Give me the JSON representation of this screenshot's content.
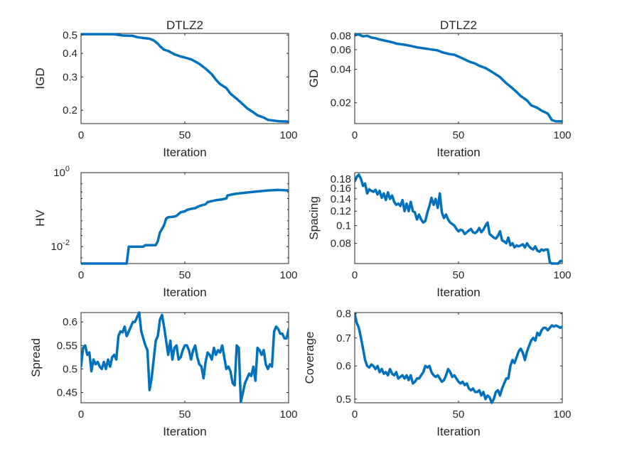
{
  "chart_data": [
    {
      "type": "line",
      "title": "DTLZ2",
      "xlabel": "Iteration",
      "ylabel": "IGD",
      "xlim": [
        0,
        100
      ],
      "ylim": [
        0.17,
        0.51
      ],
      "yscale": "log",
      "xticks": [
        "0",
        "50",
        "100"
      ],
      "yticks": [
        {
          "value": 0.2,
          "label": "0.2"
        },
        {
          "value": 0.3,
          "label": "0.3"
        },
        {
          "value": 0.4,
          "label": "0.4"
        },
        {
          "value": 0.5,
          "label": "0.5"
        }
      ],
      "color": "#0072BD",
      "series": [
        {
          "x": [
            0,
            5,
            10,
            15,
            17,
            20,
            25,
            27,
            30,
            33,
            35,
            37,
            38,
            40,
            42,
            45,
            48,
            50,
            53,
            55,
            57,
            60,
            63,
            65,
            67,
            70,
            72,
            75,
            77,
            80,
            83,
            85,
            88,
            90,
            95,
            100
          ],
          "y": [
            0.505,
            0.505,
            0.505,
            0.505,
            0.503,
            0.497,
            0.495,
            0.487,
            0.482,
            0.478,
            0.468,
            0.45,
            0.437,
            0.418,
            0.412,
            0.395,
            0.385,
            0.38,
            0.372,
            0.362,
            0.352,
            0.332,
            0.31,
            0.29,
            0.275,
            0.262,
            0.245,
            0.23,
            0.22,
            0.205,
            0.195,
            0.188,
            0.183,
            0.178,
            0.175,
            0.174
          ]
        }
      ]
    },
    {
      "type": "line",
      "title": "DTLZ2",
      "xlabel": "Iteration",
      "ylabel": "GD",
      "xlim": [
        0,
        100
      ],
      "ylim": [
        0.013,
        0.084
      ],
      "yscale": "log",
      "xticks": [
        "0",
        "50",
        "100"
      ],
      "yticks": [
        {
          "value": 0.02,
          "label": "0.02"
        },
        {
          "value": 0.04,
          "label": "0.04"
        },
        {
          "value": 0.06,
          "label": "0.06"
        },
        {
          "value": 0.08,
          "label": "0.08"
        }
      ],
      "color": "#0072BD",
      "series": [
        {
          "x": [
            0,
            2,
            4,
            6,
            8,
            10,
            12,
            15,
            18,
            20,
            25,
            30,
            35,
            40,
            42,
            45,
            48,
            50,
            53,
            55,
            58,
            60,
            63,
            65,
            68,
            70,
            73,
            75,
            78,
            80,
            83,
            85,
            88,
            90,
            93,
            95,
            97,
            100
          ],
          "y": [
            0.082,
            0.082,
            0.079,
            0.08,
            0.077,
            0.076,
            0.074,
            0.072,
            0.07,
            0.068,
            0.066,
            0.063,
            0.061,
            0.059,
            0.057,
            0.055,
            0.054,
            0.052,
            0.049,
            0.047,
            0.045,
            0.043,
            0.041,
            0.039,
            0.036,
            0.034,
            0.03,
            0.028,
            0.025,
            0.023,
            0.021,
            0.019,
            0.018,
            0.017,
            0.016,
            0.014,
            0.0136,
            0.0136
          ]
        }
      ]
    },
    {
      "type": "line",
      "title": "",
      "xlabel": "Iteration",
      "ylabel": "HV",
      "xlim": [
        0,
        100
      ],
      "ylim": [
        0.0035,
        1
      ],
      "yscale": "log",
      "xticks": [
        "0",
        "50",
        "100"
      ],
      "yticks": [
        {
          "value": 0.01,
          "label": "10",
          "exp": "-2"
        },
        {
          "value": 1,
          "label": "10",
          "exp": "0"
        }
      ],
      "color": "#0072BD",
      "series": [
        {
          "x": [
            0,
            10,
            20,
            22,
            23,
            30,
            31,
            32,
            36,
            37,
            38,
            40,
            41,
            42,
            45,
            46,
            47,
            48,
            50,
            51,
            53,
            55,
            57,
            60,
            61,
            63,
            65,
            68,
            70,
            70.5,
            73,
            75,
            80,
            85,
            90,
            95,
            100
          ],
          "y": [
            0.0035,
            0.0035,
            0.0035,
            0.0035,
            0.01,
            0.01,
            0.011,
            0.011,
            0.011,
            0.014,
            0.024,
            0.038,
            0.057,
            0.062,
            0.065,
            0.068,
            0.076,
            0.085,
            0.09,
            0.098,
            0.105,
            0.11,
            0.125,
            0.14,
            0.16,
            0.17,
            0.18,
            0.19,
            0.2,
            0.24,
            0.26,
            0.27,
            0.29,
            0.31,
            0.33,
            0.34,
            0.33
          ]
        }
      ]
    },
    {
      "type": "line",
      "title": "",
      "xlabel": "Iteration",
      "ylabel": "Spacing",
      "xlim": [
        0,
        100
      ],
      "ylim": [
        0.062,
        0.195
      ],
      "yscale": "log",
      "xticks": [
        "0",
        "50",
        "100"
      ],
      "yticks": [
        {
          "value": 0.08,
          "label": "0.08"
        },
        {
          "value": 0.1,
          "label": "0.1"
        },
        {
          "value": 0.12,
          "label": "0.12"
        },
        {
          "value": 0.14,
          "label": "0.14"
        },
        {
          "value": 0.16,
          "label": "0.16"
        },
        {
          "value": 0.18,
          "label": "0.18"
        }
      ],
      "color": "#0072BD",
      "series": [
        {
          "x": [
            0,
            1,
            2,
            3,
            4,
            5,
            6,
            7,
            8,
            9,
            10,
            11,
            12,
            13,
            14,
            15,
            16,
            17,
            18,
            19,
            20,
            21,
            22,
            23,
            24,
            25,
            26,
            27,
            28,
            29,
            30,
            31,
            32,
            33,
            34,
            35,
            36,
            37,
            38,
            39,
            40,
            41,
            42,
            43,
            44,
            45,
            46,
            47,
            48,
            49,
            50,
            51,
            52,
            53,
            54,
            55,
            56,
            57,
            58,
            59,
            60,
            61,
            62,
            63,
            64,
            65,
            66,
            67,
            68,
            69,
            70,
            71,
            72,
            73,
            74,
            75,
            76,
            77,
            78,
            79,
            80,
            81,
            82,
            83,
            84,
            85,
            86,
            87,
            88,
            89,
            90,
            91,
            92,
            93,
            94,
            95,
            96,
            97,
            98,
            99,
            100
          ],
          "y": [
            0.175,
            0.185,
            0.19,
            0.18,
            0.165,
            0.17,
            0.15,
            0.158,
            0.155,
            0.153,
            0.157,
            0.148,
            0.155,
            0.142,
            0.15,
            0.138,
            0.152,
            0.14,
            0.146,
            0.135,
            0.13,
            0.132,
            0.128,
            0.138,
            0.12,
            0.132,
            0.12,
            0.135,
            0.12,
            0.118,
            0.108,
            0.115,
            0.108,
            0.104,
            0.106,
            0.118,
            0.128,
            0.142,
            0.13,
            0.14,
            0.125,
            0.15,
            0.118,
            0.11,
            0.115,
            0.108,
            0.104,
            0.102,
            0.1,
            0.096,
            0.093,
            0.095,
            0.094,
            0.09,
            0.092,
            0.094,
            0.096,
            0.092,
            0.091,
            0.093,
            0.097,
            0.092,
            0.095,
            0.1,
            0.104,
            0.09,
            0.088,
            0.086,
            0.085,
            0.088,
            0.093,
            0.083,
            0.082,
            0.08,
            0.086,
            0.078,
            0.08,
            0.076,
            0.078,
            0.077,
            0.078,
            0.079,
            0.076,
            0.08,
            0.077,
            0.075,
            0.074,
            0.077,
            0.073,
            0.072,
            0.074,
            0.073,
            0.074,
            0.074,
            0.063,
            0.062,
            0.062,
            0.062,
            0.062,
            0.064,
            0.064
          ]
        }
      ]
    },
    {
      "type": "line",
      "title": "",
      "xlabel": "Iteration",
      "ylabel": "Spread",
      "xlim": [
        0,
        100
      ],
      "ylim": [
        0.428,
        0.62
      ],
      "yscale": "linear",
      "xticks": [
        "0",
        "50",
        "100"
      ],
      "yticks": [
        {
          "value": 0.45,
          "label": "0.45"
        },
        {
          "value": 0.5,
          "label": "0.5"
        },
        {
          "value": 0.55,
          "label": "0.55"
        },
        {
          "value": 0.6,
          "label": "0.6"
        }
      ],
      "color": "#0072BD",
      "series": [
        {
          "x": [
            0,
            1,
            2,
            3,
            4,
            5,
            6,
            7,
            8,
            9,
            10,
            11,
            12,
            13,
            14,
            15,
            16,
            17,
            18,
            19,
            20,
            21,
            22,
            23,
            24,
            25,
            26,
            27,
            28,
            29,
            30,
            31,
            32,
            33,
            34,
            35,
            36,
            37,
            38,
            39,
            40,
            41,
            42,
            43,
            44,
            45,
            46,
            47,
            48,
            49,
            50,
            51,
            52,
            53,
            54,
            55,
            56,
            57,
            58,
            59,
            60,
            61,
            62,
            63,
            64,
            65,
            66,
            67,
            68,
            69,
            70,
            71,
            72,
            73,
            74,
            75,
            76,
            77,
            78,
            79,
            80,
            81,
            82,
            83,
            84,
            85,
            86,
            87,
            88,
            89,
            90,
            91,
            92,
            93,
            94,
            95,
            96,
            97,
            98,
            99,
            100
          ],
          "y": [
            0.505,
            0.545,
            0.55,
            0.53,
            0.535,
            0.495,
            0.52,
            0.51,
            0.515,
            0.505,
            0.5,
            0.515,
            0.5,
            0.52,
            0.505,
            0.525,
            0.53,
            0.52,
            0.57,
            0.58,
            0.578,
            0.59,
            0.57,
            0.58,
            0.59,
            0.6,
            0.6,
            0.61,
            0.62,
            0.58,
            0.565,
            0.55,
            0.54,
            0.455,
            0.48,
            0.52,
            0.56,
            0.57,
            0.605,
            0.615,
            0.59,
            0.56,
            0.53,
            0.56,
            0.52,
            0.545,
            0.55,
            0.52,
            0.525,
            0.54,
            0.55,
            0.55,
            0.54,
            0.52,
            0.54,
            0.55,
            0.525,
            0.51,
            0.505,
            0.48,
            0.515,
            0.535,
            0.53,
            0.52,
            0.545,
            0.53,
            0.54,
            0.535,
            0.55,
            0.525,
            0.5,
            0.505,
            0.495,
            0.47,
            0.465,
            0.55,
            0.545,
            0.43,
            0.45,
            0.47,
            0.48,
            0.49,
            0.485,
            0.505,
            0.475,
            0.545,
            0.54,
            0.53,
            0.54,
            0.51,
            0.5,
            0.51,
            0.505,
            0.58,
            0.59,
            0.585,
            0.575,
            0.575,
            0.565,
            0.565,
            0.585
          ]
        }
      ]
    },
    {
      "type": "line",
      "title": "",
      "xlabel": "Iteration",
      "ylabel": "Coverage",
      "xlim": [
        0,
        100
      ],
      "ylim": [
        0.49,
        0.805
      ],
      "yscale": "log",
      "xticks": [
        "0",
        "50",
        "100"
      ],
      "yticks": [
        {
          "value": 0.5,
          "label": "0.5"
        },
        {
          "value": 0.6,
          "label": "0.6"
        },
        {
          "value": 0.7,
          "label": "0.7"
        },
        {
          "value": 0.8,
          "label": "0.8"
        }
      ],
      "color": "#0072BD",
      "series": [
        {
          "x": [
            0,
            1,
            2,
            3,
            4,
            5,
            6,
            7,
            8,
            9,
            10,
            11,
            12,
            13,
            14,
            15,
            16,
            17,
            18,
            19,
            20,
            21,
            22,
            23,
            24,
            25,
            26,
            27,
            28,
            29,
            30,
            31,
            32,
            33,
            34,
            35,
            36,
            37,
            38,
            39,
            40,
            41,
            42,
            43,
            44,
            45,
            46,
            47,
            48,
            49,
            50,
            51,
            52,
            53,
            54,
            55,
            56,
            57,
            58,
            59,
            60,
            61,
            62,
            63,
            64,
            65,
            66,
            67,
            68,
            69,
            70,
            71,
            72,
            73,
            74,
            75,
            76,
            77,
            78,
            79,
            80,
            81,
            82,
            83,
            84,
            85,
            86,
            87,
            88,
            89,
            90,
            91,
            92,
            93,
            94,
            95,
            96,
            97,
            98,
            99,
            100
          ],
          "y": [
            0.8,
            0.76,
            0.74,
            0.7,
            0.66,
            0.62,
            0.6,
            0.595,
            0.605,
            0.6,
            0.59,
            0.6,
            0.58,
            0.59,
            0.575,
            0.58,
            0.57,
            0.59,
            0.575,
            0.57,
            0.58,
            0.56,
            0.565,
            0.57,
            0.56,
            0.57,
            0.555,
            0.57,
            0.545,
            0.55,
            0.56,
            0.56,
            0.57,
            0.58,
            0.6,
            0.595,
            0.6,
            0.58,
            0.57,
            0.565,
            0.57,
            0.56,
            0.55,
            0.555,
            0.57,
            0.59,
            0.58,
            0.565,
            0.57,
            0.56,
            0.55,
            0.545,
            0.55,
            0.54,
            0.545,
            0.53,
            0.525,
            0.53,
            0.52,
            0.52,
            0.525,
            0.51,
            0.52,
            0.5,
            0.51,
            0.505,
            0.49,
            0.5,
            0.52,
            0.525,
            0.51,
            0.53,
            0.545,
            0.56,
            0.56,
            0.6,
            0.62,
            0.61,
            0.63,
            0.65,
            0.66,
            0.645,
            0.62,
            0.65,
            0.67,
            0.69,
            0.7,
            0.69,
            0.72,
            0.71,
            0.73,
            0.74,
            0.74,
            0.73,
            0.74,
            0.75,
            0.745,
            0.75,
            0.745,
            0.74,
            0.745
          ]
        }
      ]
    }
  ]
}
